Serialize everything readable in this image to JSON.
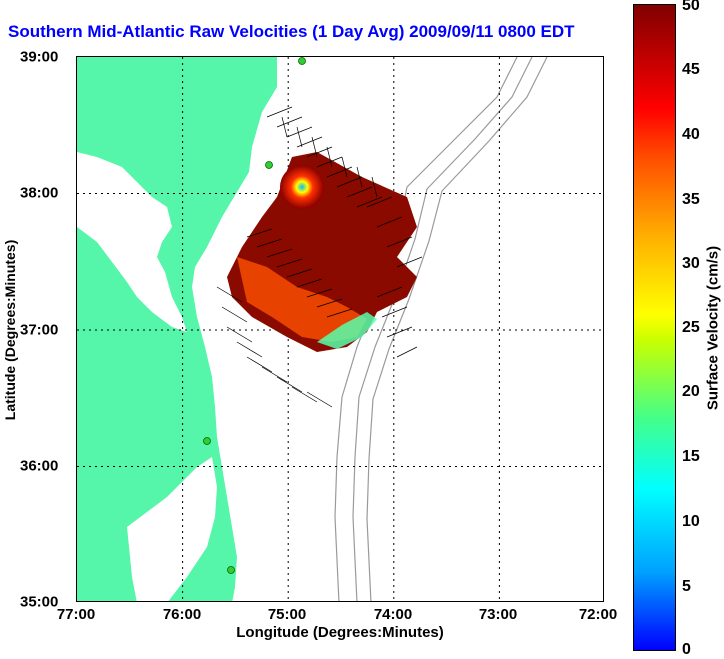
{
  "title": "Southern Mid-Atlantic Raw Velocities (1 Day Avg) 2009/09/11 0800 EDT",
  "map": {
    "xlabel": "Longitude (Degrees:Minutes)",
    "ylabel": "Latitude (Degrees:Minutes)",
    "x_ticks": [
      "77:00",
      "76:00",
      "75:00",
      "74:00",
      "73:00",
      "72:00"
    ],
    "y_ticks": [
      "39:00",
      "38:00",
      "37:00",
      "36:00",
      "35:00"
    ],
    "lon_range": [
      -77,
      -72
    ],
    "lat_range": [
      35,
      39
    ],
    "land_color": "#55f5aa",
    "contour_color": "#9a9a9a",
    "station_color": "#33cc33"
  },
  "colorbar": {
    "label": "Surface Velocity (cm/s)",
    "ticks": [
      "50",
      "45",
      "40",
      "35",
      "30",
      "25",
      "20",
      "15",
      "10",
      "5",
      "0"
    ],
    "range": [
      0,
      50
    ]
  }
}
